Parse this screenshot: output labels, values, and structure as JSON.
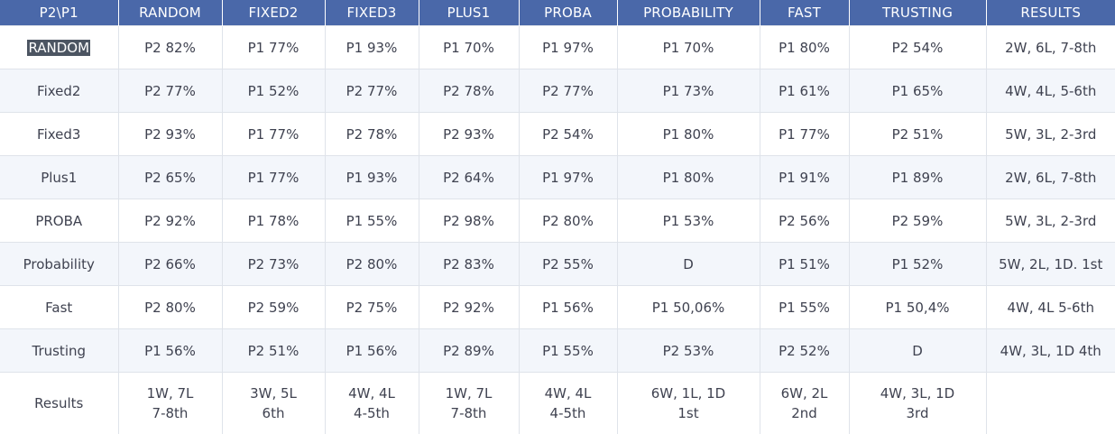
{
  "table": {
    "headers": [
      "P2\\P1",
      "RANDOM",
      "FIXED2",
      "FIXED3",
      "PLUS1",
      "PROBA",
      "PROBABILITY",
      "FAST",
      "TRUSTING",
      "RESULTS"
    ],
    "rows": [
      [
        "RANDOM",
        "P2 82%",
        "P1 77%",
        "P1 93%",
        "P1 70%",
        "P1 97%",
        "P1 70%",
        "P1 80%",
        "P2 54%",
        "2W, 6L, 7-8th"
      ],
      [
        "Fixed2",
        "P2 77%",
        "P1 52%",
        "P2 77%",
        "P2 78%",
        "P2 77%",
        "P1 73%",
        "P1 61%",
        "P1 65%",
        "4W, 4L, 5-6th"
      ],
      [
        "Fixed3",
        "P2 93%",
        "P1 77%",
        "P2 78%",
        "P2 93%",
        "P2 54%",
        "P1 80%",
        "P1 77%",
        "P2 51%",
        "5W, 3L, 2-3rd"
      ],
      [
        "Plus1",
        "P2 65%",
        "P1 77%",
        "P1 93%",
        "P2 64%",
        "P1 97%",
        "P1 80%",
        "P1 91%",
        "P1 89%",
        "2W, 6L, 7-8th"
      ],
      [
        "PROBA",
        "P2 92%",
        "P1 78%",
        "P1 55%",
        "P2 98%",
        "P2 80%",
        "P1 53%",
        "P2 56%",
        "P2 59%",
        "5W, 3L, 2-3rd"
      ],
      [
        "Probability",
        "P2 66%",
        "P2 73%",
        "P2 80%",
        "P2 83%",
        "P2 55%",
        "D",
        "P1 51%",
        "P1 52%",
        "5W, 2L, 1D. 1st"
      ],
      [
        "Fast",
        "P2 80%",
        "P2 59%",
        "P2 75%",
        "P2 92%",
        "P1 56%",
        "P1 50,06%",
        "P1 55%",
        "P1 50,4%",
        "4W, 4L 5-6th"
      ],
      [
        "Trusting",
        "P1 56%",
        "P2 51%",
        "P1 56%",
        "P2 89%",
        "P1 55%",
        "P2 53%",
        "P2 52%",
        "D",
        "4W, 3L, 1D 4th"
      ],
      [
        "Results",
        "1W, 7L\n7-8th",
        "3W, 5L\n6th",
        "4W, 4L\n4-5th",
        "1W, 7L\n7-8th",
        "4W, 4L\n4-5th",
        "6W, 1L, 1D\n1st",
        "6W, 2L\n2nd",
        "4W, 3L, 1D\n3rd",
        ""
      ]
    ]
  },
  "colors": {
    "header_background": "#4a68a9",
    "header_text": "#ffffff",
    "cell_text": "#3f4250",
    "zebra_row": "#f3f6fb",
    "grid_line": "#dfe3ea",
    "text_selection": "#4c5562"
  },
  "selection": {
    "row": 0,
    "column": 0
  }
}
